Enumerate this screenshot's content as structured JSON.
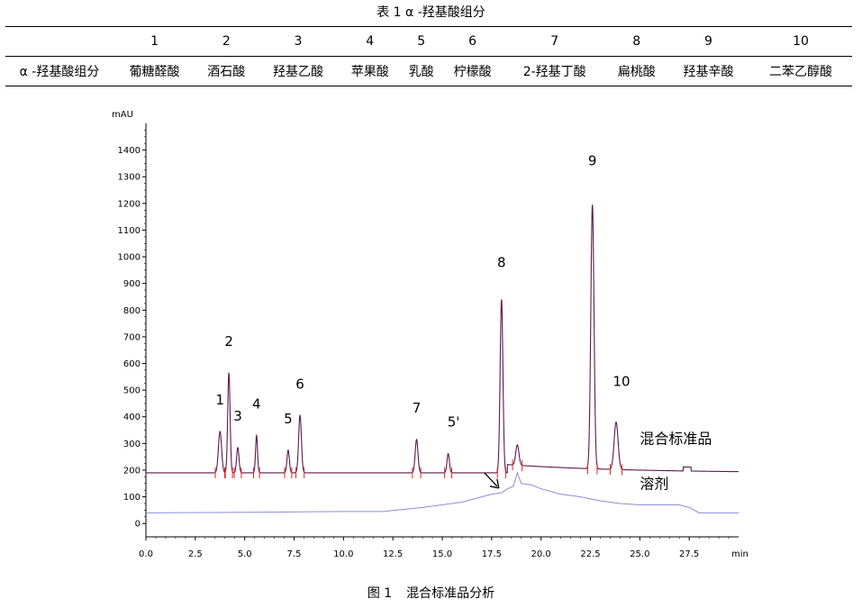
{
  "table": {
    "title": "表 1 α -羟基酸组分",
    "header_label": "",
    "row_label": "α -羟基酸组分",
    "columns": [
      {
        "num": "1",
        "name": "葡糖醛酸"
      },
      {
        "num": "2",
        "name": "酒石酸"
      },
      {
        "num": "3",
        "name": "羟基乙酸"
      },
      {
        "num": "4",
        "name": "苹果酸"
      },
      {
        "num": "5",
        "name": "乳酸"
      },
      {
        "num": "6",
        "name": "柠檬酸"
      },
      {
        "num": "7",
        "name": "2-羟基丁酸"
      },
      {
        "num": "8",
        "name": "扁桃酸"
      },
      {
        "num": "9",
        "name": "羟基辛酸"
      },
      {
        "num": "10",
        "name": "二苯乙醇酸"
      }
    ]
  },
  "figure": {
    "caption_prefix": "图 1",
    "caption_text": "混合标准品分析"
  },
  "chart_data": {
    "type": "line",
    "ylabel": "mAU",
    "xlabel": "min",
    "xlim": [
      0,
      30
    ],
    "ylim": [
      -50,
      1500
    ],
    "x_ticks": [
      "0.0",
      "2.5",
      "5.0",
      "7.5",
      "10.0",
      "12.5",
      "15.0",
      "17.5",
      "20.0",
      "22.5",
      "25.0",
      "27.5"
    ],
    "y_ticks": [
      "0",
      "100",
      "200",
      "300",
      "400",
      "500",
      "600",
      "700",
      "800",
      "900",
      "1000",
      "1100",
      "1200",
      "1300",
      "1400"
    ],
    "series": [
      {
        "name": "混合标准品",
        "color": "#5a1a4a",
        "baseline": 190,
        "peaks": [
          {
            "label": "1",
            "x": 3.75,
            "y": 345,
            "width": 0.08
          },
          {
            "label": "2",
            "x": 4.2,
            "y": 565,
            "width": 0.06
          },
          {
            "label": "3",
            "x": 4.65,
            "y": 285,
            "width": 0.06
          },
          {
            "label": "4",
            "x": 5.6,
            "y": 330,
            "width": 0.05
          },
          {
            "label": "5",
            "x": 7.2,
            "y": 275,
            "width": 0.06
          },
          {
            "label": "6",
            "x": 7.8,
            "y": 405,
            "width": 0.07
          },
          {
            "label": "7",
            "x": 13.7,
            "y": 315,
            "width": 0.07
          },
          {
            "label": "5'",
            "x": 15.3,
            "y": 262,
            "width": 0.06
          },
          {
            "label": "8",
            "x": 18.0,
            "y": 840,
            "width": 0.07
          },
          {
            "label": "",
            "x": 18.8,
            "y": 295,
            "width": 0.08
          },
          {
            "label": "9",
            "x": 22.6,
            "y": 1195,
            "width": 0.08
          },
          {
            "label": "10",
            "x": 23.8,
            "y": 380,
            "width": 0.1
          }
        ],
        "annotation": "混合标准品"
      },
      {
        "name": "溶剂",
        "color": "#8c8cd8",
        "points": [
          [
            0,
            40
          ],
          [
            5,
            42
          ],
          [
            10,
            45
          ],
          [
            12,
            45
          ],
          [
            14,
            60
          ],
          [
            16,
            80
          ],
          [
            17.5,
            110
          ],
          [
            18.0,
            115
          ],
          [
            18.3,
            130
          ],
          [
            18.6,
            140
          ],
          [
            18.8,
            190
          ],
          [
            19.0,
            150
          ],
          [
            19.5,
            145
          ],
          [
            20,
            130
          ],
          [
            21,
            110
          ],
          [
            22,
            100
          ],
          [
            23,
            85
          ],
          [
            24,
            75
          ],
          [
            25,
            70
          ],
          [
            27,
            70
          ],
          [
            27.5,
            60
          ],
          [
            28,
            40
          ],
          [
            30,
            40
          ]
        ],
        "annotation": "溶剂"
      }
    ],
    "arrow_annotation": {
      "x": 17.5,
      "y": 160
    }
  }
}
